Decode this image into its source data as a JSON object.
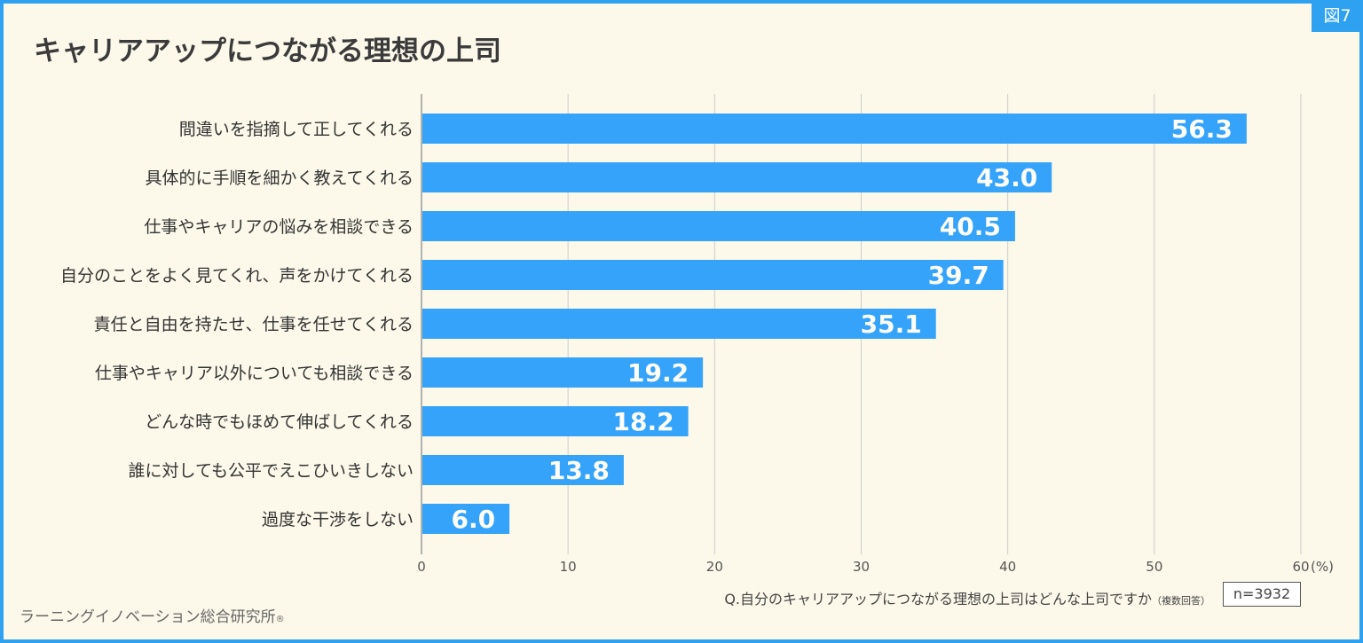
{
  "figure_tag": "図7",
  "title": "キャリアアップにつながる理想の上司",
  "question": "Q.自分のキャリアアップにつながる理想の上司はどんな上司ですか",
  "question_note": "（複数回答）",
  "sample_size": "n=3932",
  "footer": {
    "org": "ラーニングイノベーション総合研究所",
    "reg_mark": "®"
  },
  "colors": {
    "bar": "#36a3fa",
    "accent": "#2ea1f0",
    "background": "#fcf9ea",
    "grid": "#cccccc"
  },
  "chart_data": {
    "type": "bar",
    "orientation": "horizontal",
    "title": "キャリアアップにつながる理想の上司",
    "categories": [
      "間違いを指摘して正してくれる",
      "具体的に手順を細かく教えてくれる",
      "仕事やキャリアの悩みを相談できる",
      "自分のことをよく見てくれ、声をかけてくれる",
      "責任と自由を持たせ、仕事を任せてくれる",
      "仕事やキャリア以外についても相談できる",
      "どんな時でもほめて伸ばしてくれる",
      "誰に対しても公平でえこひいきしない",
      "過度な干渉をしない"
    ],
    "values": [
      56.3,
      43.0,
      40.5,
      39.7,
      35.1,
      19.2,
      18.2,
      13.8,
      6.0
    ],
    "value_labels": [
      "56.3",
      "43.0",
      "40.5",
      "39.7",
      "35.1",
      "19.2",
      "18.2",
      "13.8",
      "6.0"
    ],
    "xlim": [
      0,
      60
    ],
    "ticks": [
      0,
      10,
      20,
      30,
      40,
      50,
      60
    ],
    "tick_labels": [
      "0",
      "10",
      "20",
      "30",
      "40",
      "50",
      "60"
    ],
    "x_unit": "(%)",
    "grid": true
  }
}
